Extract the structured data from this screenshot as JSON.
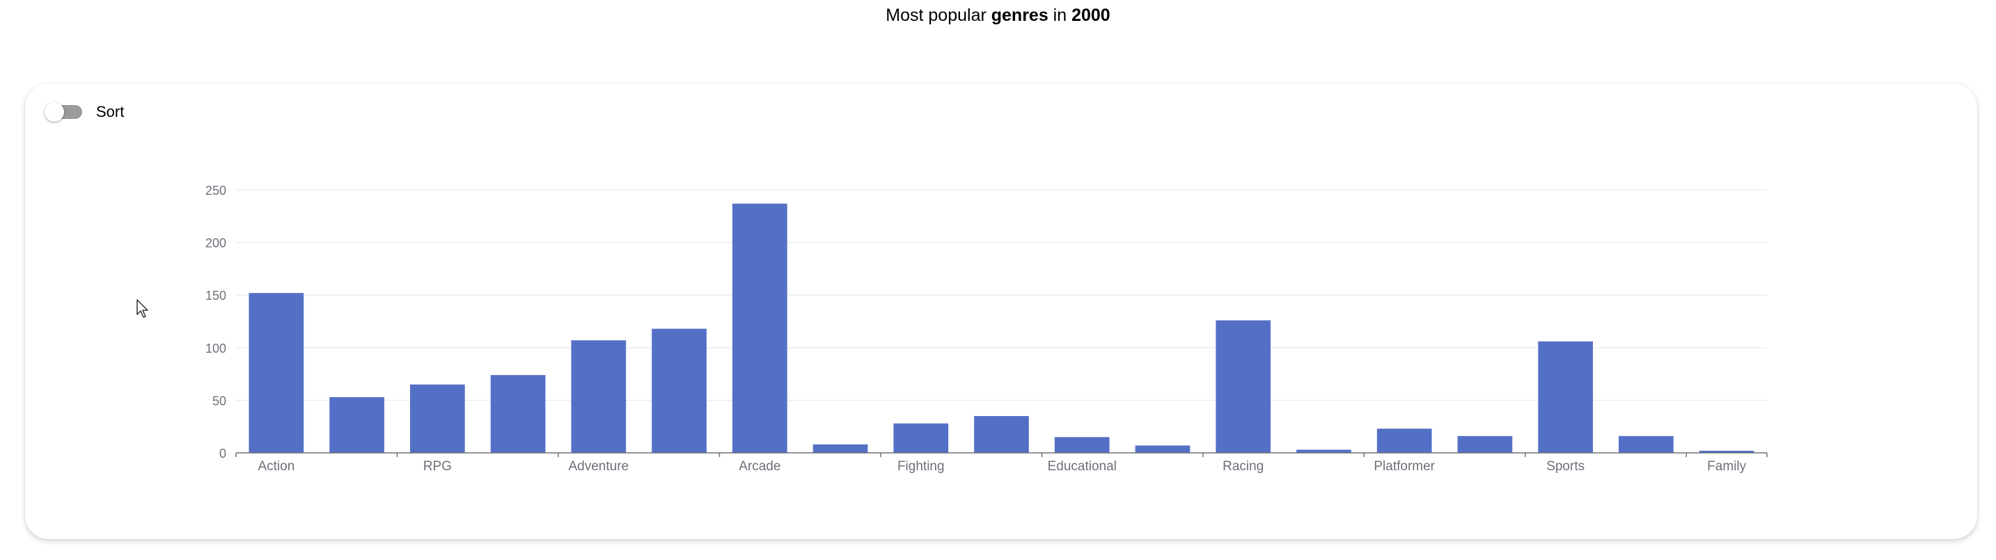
{
  "header": {
    "title_prefix": "Most popular ",
    "title_bold1": "genres",
    "title_middle": " in ",
    "title_bold2": "2000"
  },
  "controls": {
    "sort_label": "Sort",
    "sort_enabled": false
  },
  "colors": {
    "bar": "#5470c6",
    "axis": "#6e7079",
    "grid": "#e0e6f1",
    "label": "#6e7079"
  },
  "chart_data": {
    "type": "bar",
    "categories": [
      "Action",
      "",
      "RPG",
      "",
      "Adventure",
      "",
      "Arcade",
      "",
      "Fighting",
      "",
      "Educational",
      "",
      "Racing",
      "",
      "Platformer",
      "",
      "Sports",
      "",
      "Family"
    ],
    "values": [
      152,
      53,
      65,
      74,
      107,
      118,
      237,
      8,
      28,
      35,
      15,
      7,
      126,
      3,
      23,
      16,
      106,
      16,
      2
    ],
    "yticks": [
      0,
      50,
      100,
      150,
      200,
      250
    ],
    "ylim": [
      0,
      250
    ],
    "grid": true,
    "title": "",
    "xlabel": "",
    "ylabel": ""
  }
}
